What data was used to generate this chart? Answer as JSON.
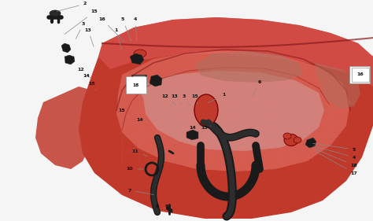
{
  "bg_color": "#f5f5f5",
  "body_main": "#c0392b",
  "body_mid": "#d9534f",
  "body_light": "#e8786e",
  "body_dark": "#8b1a1a",
  "body_inner": "#c9b0b0",
  "black": "#1a1a1a",
  "dark_gray": "#333333",
  "line_color": "#888888",
  "label_color": "#111111",
  "figsize": [
    4.74,
    2.81
  ],
  "dpi": 100
}
